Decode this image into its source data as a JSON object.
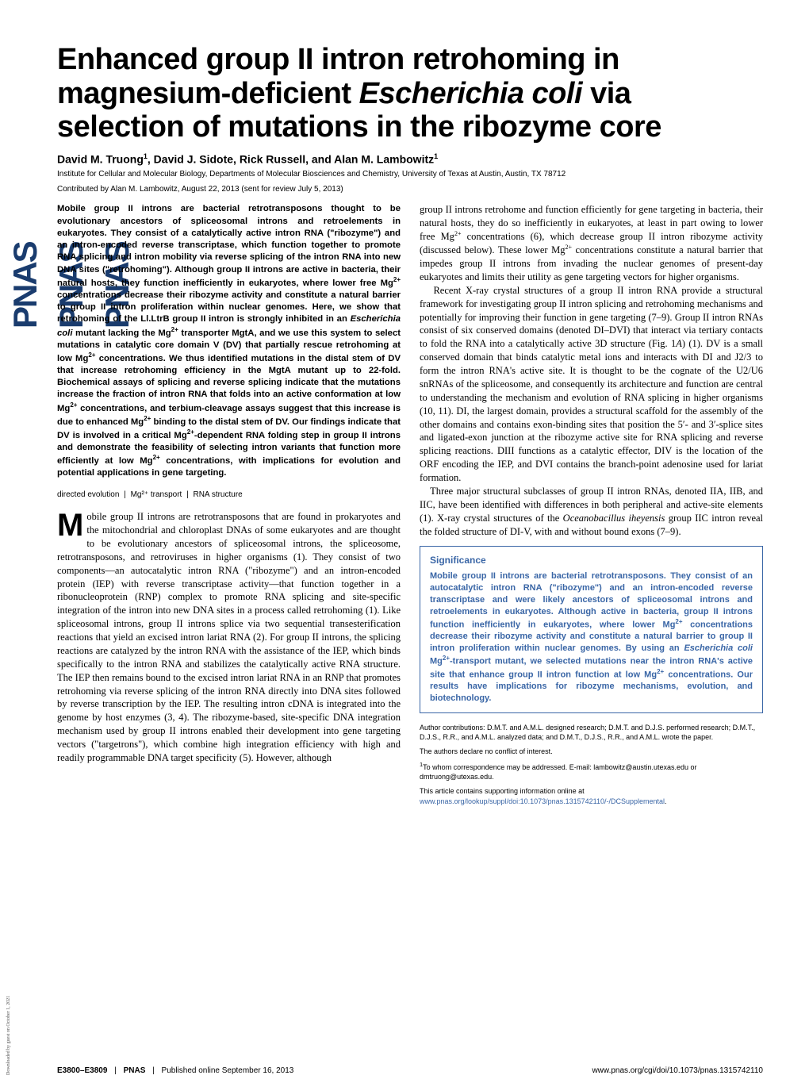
{
  "logo": {
    "text": "PNAS"
  },
  "watermark": "Downloaded by guest on October 1, 2021",
  "header": {
    "title_html": "Enhanced group II intron retrohoming in magnesium-deficient <em>Escherichia coli</em> via selection of mutations in the ribozyme core",
    "authors_html": "David M. Truong<sup>1</sup>, David J. Sidote, Rick Russell, and Alan M. Lambowitz<sup>1</sup>",
    "affiliation": "Institute for Cellular and Molecular Biology, Departments of Molecular Biosciences and Chemistry, University of Texas at Austin, Austin, TX 78712",
    "contributed": "Contributed by Alan M. Lambowitz, August 22, 2013 (sent for review July 5, 2013)"
  },
  "abstract_html": "Mobile group II introns are bacterial retrotransposons thought to be evolutionary ancestors of spliceosomal introns and retroelements in eukaryotes. They consist of a catalytically active intron RNA (\"ribozyme\") and an intron-encoded reverse transcriptase, which function together to promote RNA splicing and intron mobility via reverse splicing of the intron RNA into new DNA sites (\"retrohoming\"). Although group II introns are active in bacteria, their natural hosts, they function inefficiently in eukaryotes, where lower free Mg<sup>2+</sup> concentrations decrease their ribozyme activity and constitute a natural barrier to group II intron proliferation within nuclear genomes. Here, we show that retrohoming of the Ll.LtrB group II intron is strongly inhibited in an <i>Escherichia coli</i> mutant lacking the Mg<sup>2+</sup> transporter MgtA, and we use this system to select mutations in catalytic core domain V (DV) that partially rescue retrohoming at low Mg<sup>2+</sup> concentrations. We thus identified mutations in the distal stem of DV that increase retrohoming efficiency in the MgtA mutant up to 22-fold. Biochemical assays of splicing and reverse splicing indicate that the mutations increase the fraction of intron RNA that folds into an active conformation at low Mg<sup>2+</sup> concentrations, and terbium-cleavage assays suggest that this increase is due to enhanced Mg<sup>2+</sup> binding to the distal stem of DV. Our findings indicate that DV is involved in a critical Mg<sup>2+</sup>-dependent RNA folding step in group II introns and demonstrate the feasibility of selecting intron variants that function more efficiently at low Mg<sup>2+</sup> concentrations, with implications for evolution and potential applications in gene targeting.",
  "keywords": [
    "directed evolution",
    "Mg²⁺ transport",
    "RNA structure"
  ],
  "left_body_html": "<span class=\"dropcap\">M</span>obile group II introns are retrotransposons that are found in prokaryotes and the mitochondrial and chloroplast DNAs of some eukaryotes and are thought to be evolutionary ancestors of spliceosomal introns, the spliceosome, retrotransposons, and retroviruses in higher organisms (1). They consist of two components—an autocatalytic intron RNA (\"ribozyme\") and an intron-encoded protein (IEP) with reverse transcriptase activity—that function together in a ribonucleoprotein (RNP) complex to promote RNA splicing and site-specific integration of the intron into new DNA sites in a process called retrohoming (1). Like spliceosomal introns, group II introns splice via two sequential transesterification reactions that yield an excised intron lariat RNA (2). For group II introns, the splicing reactions are catalyzed by the intron RNA with the assistance of the IEP, which binds specifically to the intron RNA and stabilizes the catalytically active RNA structure. The IEP then remains bound to the excised intron lariat RNA in an RNP that promotes retrohoming via reverse splicing of the intron RNA directly into DNA sites followed by reverse transcription by the IEP. The resulting intron cDNA is integrated into the genome by host enzymes (3, 4). The ribozyme-based, site-specific DNA integration mechanism used by group II introns enabled their development into gene targeting vectors (\"targetrons\"), which combine high integration efficiency with high and readily programmable DNA target specificity (5). However, although",
  "right_body_top_html": "group II introns retrohome and function efficiently for gene targeting in bacteria, their natural hosts, they do so inefficiently in eukaryotes, at least in part owing to lower free Mg<sup>2+</sup> concentrations (6), which decrease group II intron ribozyme activity (discussed below). These lower Mg<sup>2+</sup> concentrations constitute a natural barrier that impedes group II introns from invading the nuclear genomes of present-day eukaryotes and limits their utility as gene targeting vectors for higher organisms.<br>&nbsp;&nbsp;&nbsp;Recent X-ray crystal structures of a group II intron RNA provide a structural framework for investigating group II intron splicing and retrohoming mechanisms and potentially for improving their function in gene targeting (7–9). Group II intron RNAs consist of six conserved domains (denoted DI–DVI) that interact via tertiary contacts to fold the RNA into a catalytically active 3D structure (Fig. 1<i>A</i>) (1). DV is a small conserved domain that binds catalytic metal ions and interacts with DI and J2/3 to form the intron RNA's active site. It is thought to be the cognate of the U2/U6 snRNAs of the spliceosome, and consequently its architecture and function are central to understanding the mechanism and evolution of RNA splicing in higher organisms (10, 11). DI, the largest domain, provides a structural scaffold for the assembly of the other domains and contains exon-binding sites that position the 5′- and 3′-splice sites and ligated-exon junction at the ribozyme active site for RNA splicing and reverse splicing reactions. DIII functions as a catalytic effector, DIV is the location of the ORF encoding the IEP, and DVI contains the branch-point adenosine used for lariat formation.<br>&nbsp;&nbsp;&nbsp;Three major structural subclasses of group II intron RNAs, denoted IIA, IIB, and IIC, have been identified with differences in both peripheral and active-site elements (1). X-ray crystal structures of the <i>Oceanobacillus iheyensis</i> group IIC intron reveal the folded structure of DI-V, with and without bound exons (7–9).",
  "significance": {
    "title": "Significance",
    "body_html": "Mobile group II introns are bacterial retrotransposons. They consist of an autocatalytic intron RNA (\"ribozyme\") and an intron-encoded reverse transcriptase and were likely ancestors of spliceosomal introns and retroelements in eukaryotes. Although active in bacteria, group II introns function inefficiently in eukaryotes, where lower Mg<sup>2+</sup> concentrations decrease their ribozyme activity and constitute a natural barrier to group II intron proliferation within nuclear genomes. By using an <i>Escherichia coli</i> Mg<sup>2+</sup>-transport mutant, we selected mutations near the intron RNA's active site that enhance group II intron function at low Mg<sup>2+</sup> concentrations. Our results have implications for ribozyme mechanisms, evolution, and biotechnology."
  },
  "footnotes": {
    "contrib": "Author contributions: D.M.T. and A.M.L. designed research; D.M.T. and D.J.S. performed research; D.M.T., D.J.S., R.R., and A.M.L. analyzed data; and D.M.T., D.J.S., R.R., and A.M.L. wrote the paper.",
    "conflict": "The authors declare no conflict of interest.",
    "corr_html": "<sup>1</sup>To whom correspondence may be addressed. E-mail: lambowitz@austin.utexas.edu or dmtruong@utexas.edu.",
    "supp_prefix": "This article contains supporting information online at ",
    "supp_link_text": "www.pnas.org/lookup/suppl/doi:10.1073/pnas.1315742110/-/DCSupplemental",
    "supp_suffix": "."
  },
  "footer": {
    "pages": "E3800–E3809",
    "pnas": "PNAS",
    "pubdate": "Published online September 16, 2013",
    "doi": "www.pnas.org/cgi/doi/10.1073/pnas.1315742110"
  }
}
